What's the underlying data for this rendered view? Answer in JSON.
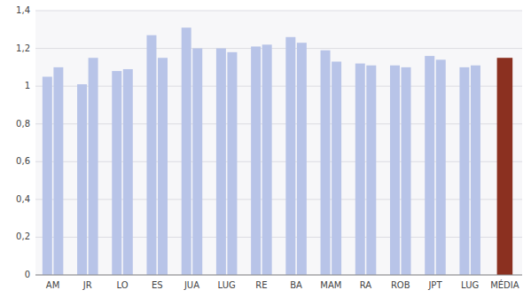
{
  "chart_data": {
    "type": "bar",
    "categories": [
      "AM",
      "JR",
      "LO",
      "ES",
      "JUA",
      "LUG",
      "RE",
      "BA",
      "MAM",
      "RA",
      "ROB",
      "JPT",
      "LUG",
      "MÉDIA"
    ],
    "series": [
      {
        "values": [
          1.05,
          1.01,
          1.08,
          1.27,
          1.31,
          1.2,
          1.21,
          1.26,
          1.19,
          1.12,
          1.11,
          1.16,
          1.1,
          1.15
        ],
        "colors": [
          "#b8c4e8",
          "#b8c4e8",
          "#b8c4e8",
          "#b8c4e8",
          "#b8c4e8",
          "#b8c4e8",
          "#b8c4e8",
          "#b8c4e8",
          "#b8c4e8",
          "#b8c4e8",
          "#b8c4e8",
          "#b8c4e8",
          "#b8c4e8",
          "#8b3020"
        ]
      },
      {
        "values": [
          1.1,
          1.15,
          1.09,
          1.15,
          1.2,
          1.18,
          1.22,
          1.23,
          1.13,
          1.11,
          1.1,
          1.14,
          1.11,
          null
        ],
        "color": "#b8c4e8"
      }
    ],
    "ylim": [
      0,
      1.4
    ],
    "yticks": [
      0,
      {
        "value": 0.2,
        "label": "0,2"
      },
      {
        "value": 0.4,
        "label": "0,4"
      },
      {
        "value": 0.6,
        "label": "0,6"
      },
      {
        "value": 0.8,
        "label": "0,8"
      },
      1,
      {
        "value": 1.2,
        "label": "1,2"
      },
      {
        "value": 1.4,
        "label": "1,4"
      }
    ],
    "grid": true
  }
}
